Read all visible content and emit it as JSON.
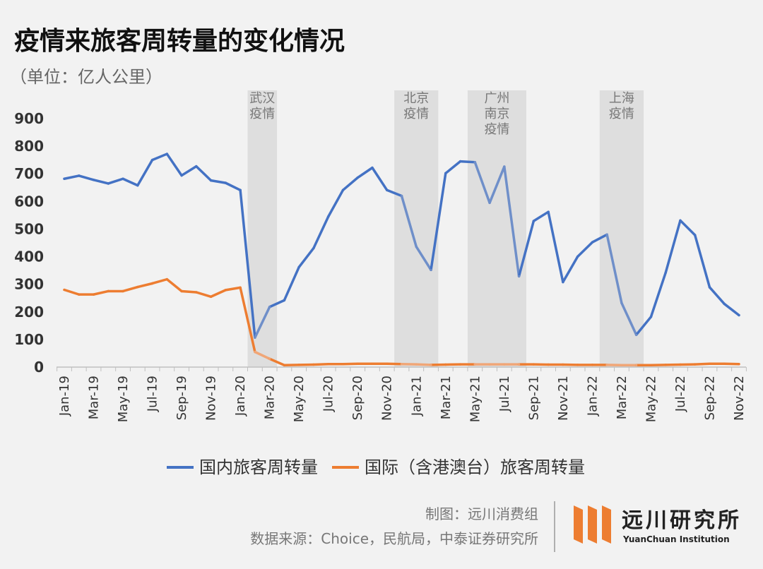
{
  "title": "疫情来旅客周转量的变化情况",
  "unit_note": "（单位：亿人公里）",
  "colors": {
    "domestic": "#4472c4",
    "domestic_shaded": "#6f8fc9",
    "international": "#ed7d31",
    "international_shaded": "#f0a677",
    "band": "#dedede",
    "brand": "#ed7d31"
  },
  "chart_data": {
    "type": "line",
    "title": "疫情来旅客周转量的变化情况",
    "ylabel": "（单位：亿人公里）",
    "ylim": [
      0,
      900
    ],
    "yticks": [
      "0",
      "100",
      "200",
      "300",
      "400",
      "500",
      "600",
      "700",
      "800",
      "900"
    ],
    "xtick_labels": [
      "Jan-19",
      "Mar-19",
      "May-19",
      "Jul-19",
      "Sep-19",
      "Nov-19",
      "Jan-20",
      "Mar-20",
      "May-20",
      "Jul-20",
      "Sep-20",
      "Nov-20",
      "Jan-21",
      "Mar-21",
      "May-21",
      "Jul-21",
      "Sep-21",
      "Nov-21",
      "Jan-22",
      "Mar-22",
      "May-22",
      "Jul-22",
      "Sep-22",
      "Nov-22"
    ],
    "x": [
      "2019-01",
      "2019-02",
      "2019-03",
      "2019-04",
      "2019-05",
      "2019-06",
      "2019-07",
      "2019-08",
      "2019-09",
      "2019-10",
      "2019-11",
      "2019-12",
      "2020-01",
      "2020-02",
      "2020-03",
      "2020-04",
      "2020-05",
      "2020-06",
      "2020-07",
      "2020-08",
      "2020-09",
      "2020-10",
      "2020-11",
      "2020-12",
      "2021-01",
      "2021-02",
      "2021-03",
      "2021-04",
      "2021-05",
      "2021-06",
      "2021-07",
      "2021-08",
      "2021-09",
      "2021-10",
      "2021-11",
      "2021-12",
      "2022-01",
      "2022-02",
      "2022-03",
      "2022-04",
      "2022-05",
      "2022-06",
      "2022-07",
      "2022-08",
      "2022-09",
      "2022-10",
      "2022-11"
    ],
    "series": [
      {
        "name": "国内旅客周转量",
        "values": [
          682,
          693,
          678,
          665,
          682,
          658,
          750,
          772,
          694,
          727,
          676,
          667,
          641,
          107,
          218,
          242,
          362,
          431,
          545,
          641,
          686,
          722,
          641,
          620,
          436,
          352,
          702,
          745,
          742,
          595,
          726,
          329,
          529,
          562,
          308,
          400,
          452,
          480,
          232,
          117,
          182,
          342,
          531,
          478,
          289,
          229,
          188
        ]
      },
      {
        "name": "国际（含港澳台）旅客周转量",
        "values": [
          280,
          263,
          263,
          275,
          275,
          290,
          303,
          318,
          275,
          271,
          255,
          279,
          288,
          55,
          30,
          7,
          8,
          9,
          11,
          11,
          12,
          12,
          12,
          11,
          10,
          8,
          9,
          10,
          10,
          10,
          10,
          10,
          10,
          9,
          9,
          8,
          8,
          8,
          7,
          7,
          7,
          8,
          9,
          10,
          12,
          12,
          11
        ]
      }
    ],
    "shaded_periods": [
      {
        "label_lines": [
          "武汉",
          "疫情"
        ],
        "start": "2020-02",
        "end": "2020-03"
      },
      {
        "label_lines": [
          "北京",
          "疫情"
        ],
        "start": "2020-12",
        "end": "2021-02"
      },
      {
        "label_lines": [
          "广州",
          "南京",
          "疫情"
        ],
        "start": "2021-05",
        "end": "2021-08"
      },
      {
        "label_lines": [
          "上海",
          "疫情"
        ],
        "start": "2022-02",
        "end": "2022-04"
      }
    ],
    "grid": false,
    "legend_position": "bottom"
  },
  "footer": {
    "line1": "制图：远川消费组",
    "line2": "数据来源：Choice，民航局，中泰证券研究所"
  },
  "brand": {
    "name": "远川研究所",
    "name_en": "YuanChuan Institution"
  }
}
